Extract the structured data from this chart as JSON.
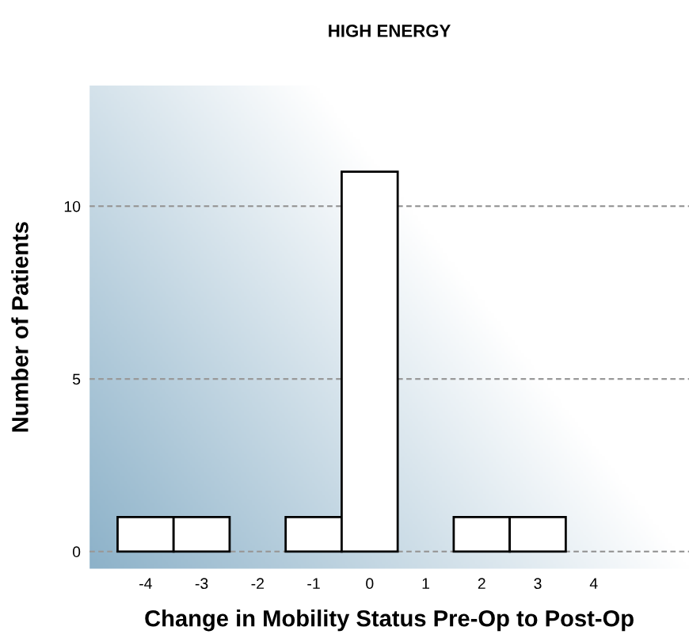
{
  "chart_data": {
    "type": "bar",
    "title": "HIGH ENERGY",
    "xlabel": "Change in Mobility Status Pre-Op to Post-Op",
    "ylabel": "Number of Patients",
    "x": [
      -4,
      -3,
      -1,
      0,
      2,
      3
    ],
    "values": [
      1,
      1,
      1,
      11,
      1,
      1
    ],
    "color": "#ffffff",
    "xlim": [
      -5,
      5.7
    ],
    "ylim": [
      -0.5,
      13.5
    ],
    "xticks": [
      -4,
      -3,
      -2,
      -1,
      0,
      1,
      2,
      3,
      4
    ],
    "yticks": [
      0,
      5,
      10
    ],
    "grid": "y"
  }
}
